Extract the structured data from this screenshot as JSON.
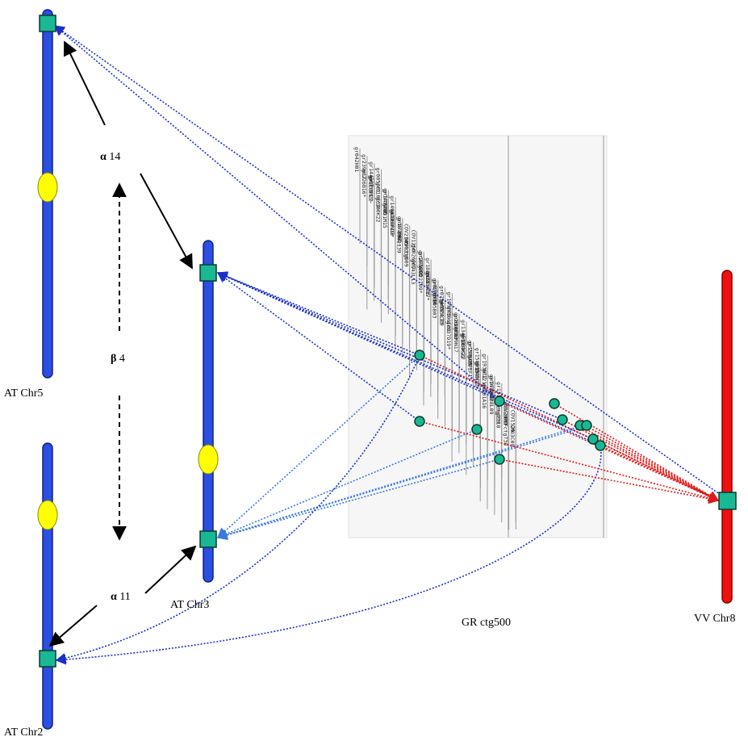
{
  "chromosomes": {
    "at_chr5": "AT Chr5",
    "at_chr3": "AT Chr3",
    "at_chr2": "AT Chr2",
    "vv_chr8": "VV Chr8"
  },
  "contig_label": "GR ctg500",
  "relations": {
    "alpha14_symbol": "α",
    "alpha14_value": "14",
    "beta4_symbol": "β",
    "beta4_value": "4",
    "alpha11_symbol": "α",
    "alpha11_value": "11"
  },
  "colors": {
    "at_chromosome": "#2b4fe0",
    "vv_chromosome": "#f01010",
    "centromere": "#ffff00",
    "marker": "#19b894",
    "link_blue": "#1a2fc8",
    "link_light_blue": "#3c78e0",
    "link_red": "#e01818"
  },
  "contig_markers": [
    "gr042H01",
    "gr239H17",
    "gr144B07",
    "gr226B16*",
    "gr033M22",
    "gr005J01",
    "gr110E17~",
    "gr110E14~",
    "gr147A06",
    "gr180K22",
    "gr143C12",
    "gr149A22",
    "gr031M15",
    "gr069N13",
    "gr072M02~",
    "gr129F19*",
    "gr187E07",
    "COV2145",
    "COV1139",
    "HCFctg009",
    "COV1250",
    "COV0236",
    "gr026D07",
    "gr205O03",
    "gr143L13",
    "gr167A04",
    "gr188M24",
    "gr222I09*",
    "gr224C17*",
    "gr070K16",
    "gr221A05",
    "gr020C09",
    "gr073A05",
    "gr105B03",
    "gr024C09",
    "gr109P09",
    "gr135L13",
    "gr106E03",
    "gr014F13",
    "gr037D19*",
    "gr208M16*",
    "gr134F12",
    "gr039N17",
    "gr001K22",
    "gr205A16*",
    "gr148K22",
    "gr150L15",
    "gr158F19",
    "gr072F15",
    "gr046C15",
    "gr193N12",
    "gr159N17*",
    "gr121O02",
    "gr079A12",
    "gr101A16",
    "gr147D10",
    "gr121C20",
    "gr038L09",
    "HCFctg2118",
    "AOG2017",
    "HCFctg019",
    "COV2070",
    "COV1526",
    "HCFctg738",
    "CM03C09"
  ]
}
